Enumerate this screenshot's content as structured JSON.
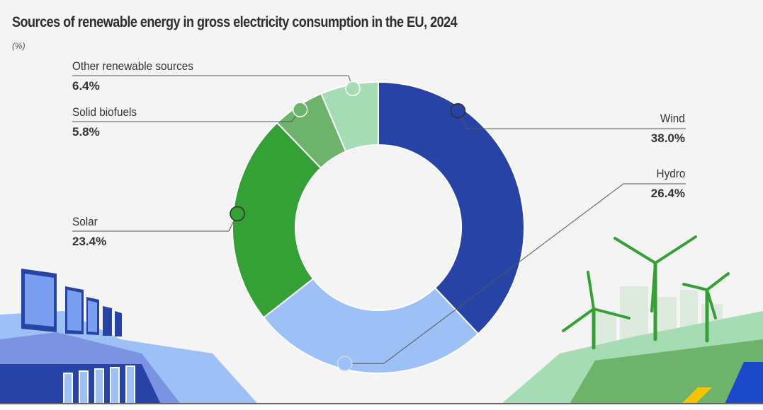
{
  "chart_data": {
    "type": "pie",
    "donut": true,
    "title": "Sources of renewable energy in gross electricity consumption in the EU, 2024",
    "unit": "(%)",
    "slices": [
      {
        "label": "Wind",
        "value": 38.0,
        "display": "38.0%",
        "color": "#2743a6"
      },
      {
        "label": "Hydro",
        "value": 26.4,
        "display": "26.4%",
        "color": "#9dc1f7"
      },
      {
        "label": "Solar",
        "value": 23.4,
        "display": "23.4%",
        "color": "#34a035"
      },
      {
        "label": "Solid biofuels",
        "value": 5.8,
        "display": "5.8%",
        "color": "#6db36b"
      },
      {
        "label": "Other renewable sources",
        "value": 6.4,
        "display": "6.4%",
        "color": "#a5dcb3"
      }
    ],
    "start": "top",
    "direction": "clockwise",
    "legend": "leader-line labels"
  }
}
